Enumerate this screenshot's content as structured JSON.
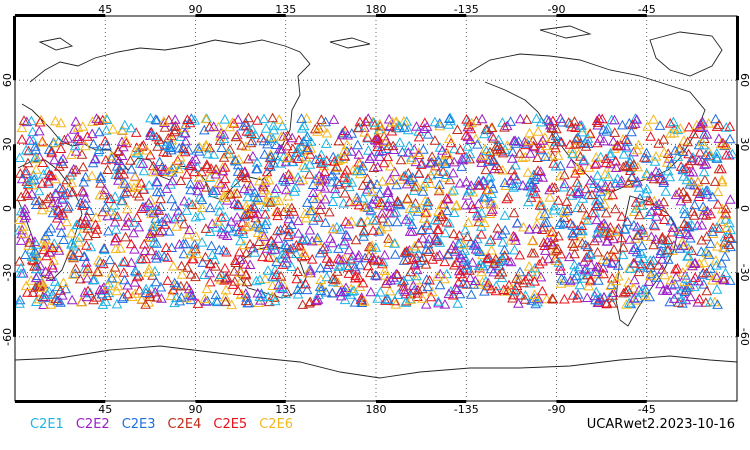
{
  "map": {
    "top_ticks": [
      "45",
      "90",
      "135",
      "180",
      "-135",
      "-90",
      "-45"
    ],
    "bottom_ticks": [
      "45",
      "90",
      "135",
      "180",
      "-135",
      "-90",
      "-45"
    ],
    "left_ticks": [
      "60",
      "30",
      "0",
      "-30",
      "-60"
    ],
    "right_ticks": [
      "60",
      "30",
      "0",
      "-30",
      "-60"
    ],
    "lon_range": [
      0,
      360
    ],
    "lat_range": [
      -90,
      90
    ],
    "grid": "dotted",
    "marker": "triangle-outline"
  },
  "legend": [
    {
      "label": "C2E1",
      "color": "#1ab4e6"
    },
    {
      "label": "C2E2",
      "color": "#9a1fc8"
    },
    {
      "label": "C2E3",
      "color": "#1f6fe0"
    },
    {
      "label": "C2E4",
      "color": "#c22a1a"
    },
    {
      "label": "C2E5",
      "color": "#e8101c"
    },
    {
      "label": "C2E6",
      "color": "#f2b81e"
    }
  ],
  "footer": "UCARwet2.2023-10-16"
}
